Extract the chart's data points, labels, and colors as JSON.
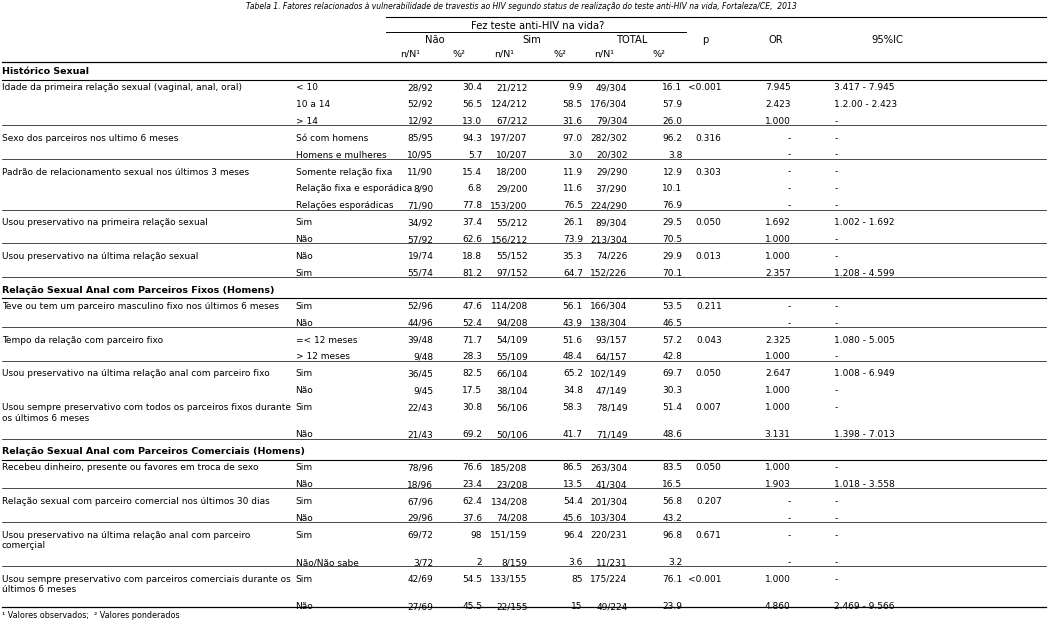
{
  "title": "Tabela 1. Fatores relacionados à vulnerabilidade de travestis ao HIV segundo status de realização do teste anti-HIV na vida, Fortaleza/CE,  2013",
  "header1": "Fez teste anti-HIV na vida?",
  "footnote": "¹ Valores observados;  ² Valores ponderados",
  "rows": [
    {
      "type": "section",
      "label": "Histórico Sexual"
    },
    {
      "type": "data",
      "col1": "Idade da primeira relação sexual (vaginal, anal, oral)",
      "col2": "< 10",
      "nao_nN": "28/92",
      "nao_pct": "30.4",
      "sim_nN": "21/212",
      "sim_pct": "9.9",
      "tot_nN": "49/304",
      "tot_pct": "16.1",
      "p": "<0.001",
      "OR": "7.945",
      "IC": "3.417 - 7.945"
    },
    {
      "type": "data",
      "col1": "",
      "col2": "10 a 14",
      "nao_nN": "52/92",
      "nao_pct": "56.5",
      "sim_nN": "124/212",
      "sim_pct": "58.5",
      "tot_nN": "176/304",
      "tot_pct": "57.9",
      "p": "",
      "OR": "2.423",
      "IC": "1.2.00 - 2.423"
    },
    {
      "type": "data",
      "col1": "",
      "col2": "> 14",
      "nao_nN": "12/92",
      "nao_pct": "13.0",
      "sim_nN": "67/212",
      "sim_pct": "31.6",
      "tot_nN": "79/304",
      "tot_pct": "26.0",
      "p": "",
      "OR": "1.000",
      "IC": "-"
    },
    {
      "type": "sep"
    },
    {
      "type": "data",
      "col1": "Sexo dos parceiros nos ultimo 6 meses",
      "col2": "Só com homens",
      "nao_nN": "85/95",
      "nao_pct": "94.3",
      "sim_nN": "197/207",
      "sim_pct": "97.0",
      "tot_nN": "282/302",
      "tot_pct": "96.2",
      "p": "0.316",
      "OR": "-",
      "IC": "-"
    },
    {
      "type": "data",
      "col1": "",
      "col2": "Homens e mulheres",
      "nao_nN": "10/95",
      "nao_pct": "5.7",
      "sim_nN": "10/207",
      "sim_pct": "3.0",
      "tot_nN": "20/302",
      "tot_pct": "3.8",
      "p": "",
      "OR": "-",
      "IC": "-"
    },
    {
      "type": "sep"
    },
    {
      "type": "data",
      "col1": "Padrão de relacionamento sexual nos últimos 3 meses",
      "col2": "Somente relação fixa",
      "nao_nN": "11/90",
      "nao_pct": "15.4",
      "sim_nN": "18/200",
      "sim_pct": "11.9",
      "tot_nN": "29/290",
      "tot_pct": "12.9",
      "p": "0.303",
      "OR": "-",
      "IC": "-"
    },
    {
      "type": "data",
      "col1": "",
      "col2": "Relação fixa e esporádica",
      "nao_nN": "8/90",
      "nao_pct": "6.8",
      "sim_nN": "29/200",
      "sim_pct": "11.6",
      "tot_nN": "37/290",
      "tot_pct": "10.1",
      "p": "",
      "OR": "-",
      "IC": "-"
    },
    {
      "type": "data",
      "col1": "",
      "col2": "Relações esporádicas",
      "nao_nN": "71/90",
      "nao_pct": "77.8",
      "sim_nN": "153/200",
      "sim_pct": "76.5",
      "tot_nN": "224/290",
      "tot_pct": "76.9",
      "p": "",
      "OR": "-",
      "IC": "-"
    },
    {
      "type": "sep"
    },
    {
      "type": "data",
      "col1": "Usou preservativo na primeira relação sexual",
      "col2": "Sim",
      "nao_nN": "34/92",
      "nao_pct": "37.4",
      "sim_nN": "55/212",
      "sim_pct": "26.1",
      "tot_nN": "89/304",
      "tot_pct": "29.5",
      "p": "0.050",
      "OR": "1.692",
      "IC": "1.002 - 1.692"
    },
    {
      "type": "data",
      "col1": "",
      "col2": "Não",
      "nao_nN": "57/92",
      "nao_pct": "62.6",
      "sim_nN": "156/212",
      "sim_pct": "73.9",
      "tot_nN": "213/304",
      "tot_pct": "70.5",
      "p": "",
      "OR": "1.000",
      "IC": "-"
    },
    {
      "type": "sep"
    },
    {
      "type": "data",
      "col1": "Usou preservativo na última relação sexual",
      "col2": "Não",
      "nao_nN": "19/74",
      "nao_pct": "18.8",
      "sim_nN": "55/152",
      "sim_pct": "35.3",
      "tot_nN": "74/226",
      "tot_pct": "29.9",
      "p": "0.013",
      "OR": "1.000",
      "IC": "-"
    },
    {
      "type": "data",
      "col1": "",
      "col2": "Sim",
      "nao_nN": "55/74",
      "nao_pct": "81.2",
      "sim_nN": "97/152",
      "sim_pct": "64.7",
      "tot_nN": "152/226",
      "tot_pct": "70.1",
      "p": "",
      "OR": "2.357",
      "IC": "1.208 - 4.599"
    },
    {
      "type": "sep"
    },
    {
      "type": "section",
      "label": "Relação Sexual Anal com Parceiros Fixos (Homens)"
    },
    {
      "type": "data",
      "col1": "Teve ou tem um parceiro masculino fixo nos últimos 6 meses",
      "col2": "Sim",
      "nao_nN": "52/96",
      "nao_pct": "47.6",
      "sim_nN": "114/208",
      "sim_pct": "56.1",
      "tot_nN": "166/304",
      "tot_pct": "53.5",
      "p": "0.211",
      "OR": "-",
      "IC": "-"
    },
    {
      "type": "data",
      "col1": "",
      "col2": "Não",
      "nao_nN": "44/96",
      "nao_pct": "52.4",
      "sim_nN": "94/208",
      "sim_pct": "43.9",
      "tot_nN": "138/304",
      "tot_pct": "46.5",
      "p": "",
      "OR": "-",
      "IC": "-"
    },
    {
      "type": "sep"
    },
    {
      "type": "data",
      "col1": "Tempo da relação com parceiro fixo",
      "col2": "=< 12 meses",
      "nao_nN": "39/48",
      "nao_pct": "71.7",
      "sim_nN": "54/109",
      "sim_pct": "51.6",
      "tot_nN": "93/157",
      "tot_pct": "57.2",
      "p": "0.043",
      "OR": "2.325",
      "IC": "1.080 - 5.005"
    },
    {
      "type": "data",
      "col1": "",
      "col2": "> 12 meses",
      "nao_nN": "9/48",
      "nao_pct": "28.3",
      "sim_nN": "55/109",
      "sim_pct": "48.4",
      "tot_nN": "64/157",
      "tot_pct": "42.8",
      "p": "",
      "OR": "1.000",
      "IC": "-"
    },
    {
      "type": "sep"
    },
    {
      "type": "data",
      "col1": "Usou preservativo na última relação anal com parceiro fixo",
      "col2": "Sim",
      "nao_nN": "36/45",
      "nao_pct": "82.5",
      "sim_nN": "66/104",
      "sim_pct": "65.2",
      "tot_nN": "102/149",
      "tot_pct": "69.7",
      "p": "0.050",
      "OR": "2.647",
      "IC": "1.008 - 6.949"
    },
    {
      "type": "data",
      "col1": "",
      "col2": "Não",
      "nao_nN": "9/45",
      "nao_pct": "17.5",
      "sim_nN": "38/104",
      "sim_pct": "34.8",
      "tot_nN": "47/149",
      "tot_pct": "30.3",
      "p": "",
      "OR": "1.000",
      "IC": "-"
    },
    {
      "type": "data2",
      "col1": "Usou sempre preservativo com todos os parceiros fixos durante\nos últimos 6 meses",
      "col2": "Sim",
      "nao_nN": "22/43",
      "nao_pct": "30.8",
      "sim_nN": "56/106",
      "sim_pct": "58.3",
      "tot_nN": "78/149",
      "tot_pct": "51.4",
      "p": "0.007",
      "OR": "1.000",
      "IC": "-"
    },
    {
      "type": "data",
      "col1": "",
      "col2": "Não",
      "nao_nN": "21/43",
      "nao_pct": "69.2",
      "sim_nN": "50/106",
      "sim_pct": "41.7",
      "tot_nN": "71/149",
      "tot_pct": "48.6",
      "p": "",
      "OR": "3.131",
      "IC": "1.398 - 7.013"
    },
    {
      "type": "sep"
    },
    {
      "type": "section",
      "label": "Relação Sexual Anal com Parceiros Comerciais (Homens)"
    },
    {
      "type": "data",
      "col1": "Recebeu dinheiro, presente ou favores em troca de sexo",
      "col2": "Sim",
      "nao_nN": "78/96",
      "nao_pct": "76.6",
      "sim_nN": "185/208",
      "sim_pct": "86.5",
      "tot_nN": "263/304",
      "tot_pct": "83.5",
      "p": "0.050",
      "OR": "1.000",
      "IC": "-"
    },
    {
      "type": "data",
      "col1": "",
      "col2": "Não",
      "nao_nN": "18/96",
      "nao_pct": "23.4",
      "sim_nN": "23/208",
      "sim_pct": "13.5",
      "tot_nN": "41/304",
      "tot_pct": "16.5",
      "p": "",
      "OR": "1.903",
      "IC": "1.018 - 3.558"
    },
    {
      "type": "sep"
    },
    {
      "type": "data",
      "col1": "Relação sexual com parceiro comercial nos últimos 30 dias",
      "col2": "Sim",
      "nao_nN": "67/96",
      "nao_pct": "62.4",
      "sim_nN": "134/208",
      "sim_pct": "54.4",
      "tot_nN": "201/304",
      "tot_pct": "56.8",
      "p": "0.207",
      "OR": "-",
      "IC": "-"
    },
    {
      "type": "data",
      "col1": "",
      "col2": "Não",
      "nao_nN": "29/96",
      "nao_pct": "37.6",
      "sim_nN": "74/208",
      "sim_pct": "45.6",
      "tot_nN": "103/304",
      "tot_pct": "43.2",
      "p": "",
      "OR": "-",
      "IC": "-"
    },
    {
      "type": "sep"
    },
    {
      "type": "data2",
      "col1": "Usou preservativo na última relação anal com parceiro\ncomerçial",
      "col2": "Sim",
      "nao_nN": "69/72",
      "nao_pct": "98",
      "sim_nN": "151/159",
      "sim_pct": "96.4",
      "tot_nN": "220/231",
      "tot_pct": "96.8",
      "p": "0.671",
      "OR": "-",
      "IC": "-"
    },
    {
      "type": "data",
      "col1": "",
      "col2": "Não/Não sabe",
      "nao_nN": "3/72",
      "nao_pct": "2",
      "sim_nN": "8/159",
      "sim_pct": "3.6",
      "tot_nN": "11/231",
      "tot_pct": "3.2",
      "p": "",
      "OR": "-",
      "IC": "-"
    },
    {
      "type": "sep"
    },
    {
      "type": "data2",
      "col1": "Usou sempre preservativo com parceiros comerciais durante os\núltimos 6 meses",
      "col2": "Sim",
      "nao_nN": "42/69",
      "nao_pct": "54.5",
      "sim_nN": "133/155",
      "sim_pct": "85",
      "tot_nN": "175/224",
      "tot_pct": "76.1",
      "p": "<0.001",
      "OR": "1.000",
      "IC": "-"
    },
    {
      "type": "data",
      "col1": "",
      "col2": "Não",
      "nao_nN": "27/69",
      "nao_pct": "45.5",
      "sim_nN": "22/155",
      "sim_pct": "15",
      "tot_nN": "49/224",
      "tot_pct": "23.9",
      "p": "",
      "OR": "4.860",
      "IC": "2.469 - 9.566"
    }
  ]
}
